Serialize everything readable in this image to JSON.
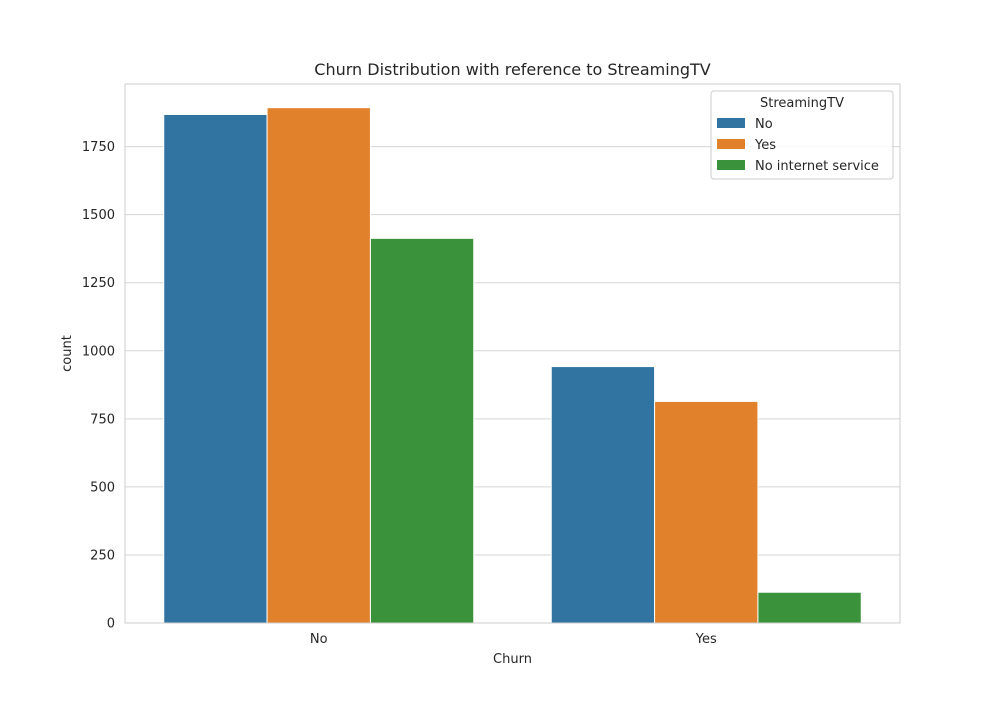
{
  "chart_data": {
    "type": "bar",
    "title": "Churn Distribution with reference to StreamingTV",
    "xlabel": "Churn",
    "ylabel": "count",
    "categories": [
      "No",
      "Yes"
    ],
    "series": [
      {
        "name": "No",
        "values": [
          1868,
          942
        ],
        "color": "#3274a1"
      },
      {
        "name": "Yes",
        "values": [
          1893,
          814
        ],
        "color": "#e1812c"
      },
      {
        "name": "No internet service",
        "values": [
          1413,
          113
        ],
        "color": "#3a923a"
      }
    ],
    "ylim": [
      0,
      1980
    ],
    "yticks": [
      0,
      250,
      500,
      750,
      1000,
      1250,
      1500,
      1750
    ],
    "grid": true,
    "legend": {
      "title": "StreamingTV",
      "placement": "top-right"
    }
  }
}
